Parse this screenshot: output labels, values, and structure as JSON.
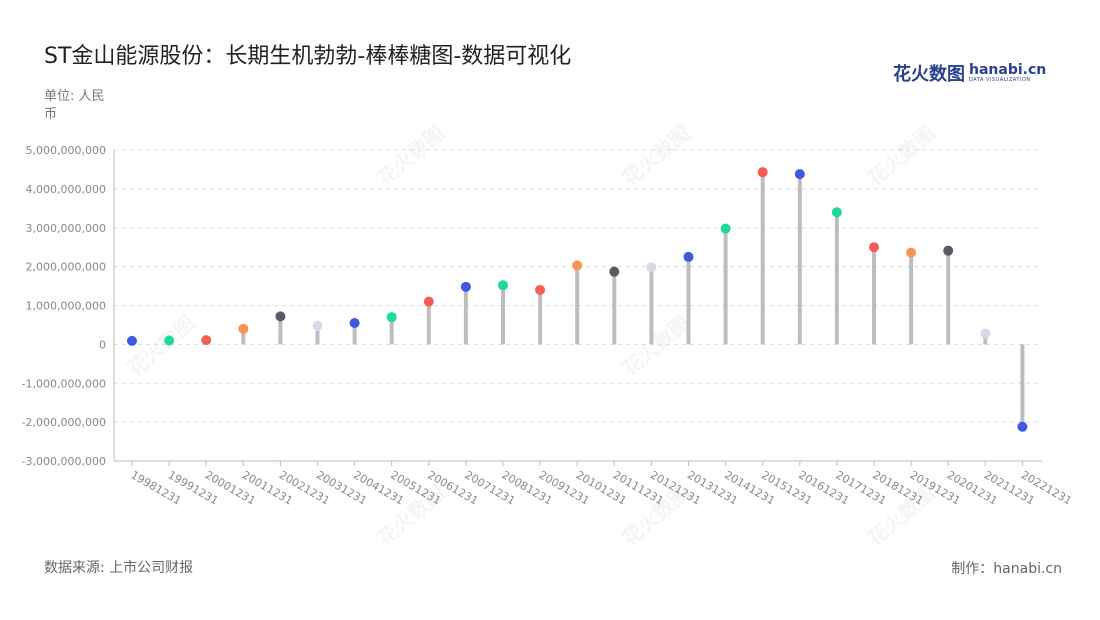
{
  "title": "ST金山能源股份：长期生机勃勃-棒棒糖图-数据可视化",
  "logo": {
    "cn": "花火数图",
    "en": "hanabi.cn",
    "en_sub": "DATA VISUALIZATION"
  },
  "unit_label": "单位: 人民币",
  "source": "数据来源: 上市公司财报",
  "credit": "制作：hanabi.cn",
  "colors": {
    "stem": "#bdbdbd",
    "grid": "#dcdcdc",
    "axis": "#bdbdbd",
    "palette": [
      "#4059e3",
      "#1fd8a0",
      "#f35d54",
      "#f69454",
      "#5a5a66",
      "#d5dae4"
    ]
  },
  "chart_data": {
    "type": "lollipop",
    "ylim": [
      -3000000000,
      5000000000
    ],
    "yticks": [
      5000000000,
      4000000000,
      3000000000,
      2000000000,
      1000000000,
      0,
      -1000000000,
      -2000000000,
      -3000000000
    ],
    "ytick_labels": [
      "5,000,000,000",
      "4,000,000,000",
      "3,000,000,000",
      "2,000,000,000",
      "1,000,000,000",
      "0",
      "-1,000,000,000",
      "-2,000,000,000",
      "-3,000,000,000"
    ],
    "grid": true,
    "categories": [
      "19981231",
      "19991231",
      "20001231",
      "20011231",
      "20021231",
      "20031231",
      "20041231",
      "20051231",
      "20061231",
      "20071231",
      "20081231",
      "20091231",
      "20101231",
      "20111231",
      "20121231",
      "20131231",
      "20141231",
      "20151231",
      "20161231",
      "20171231",
      "20181231",
      "20191231",
      "20201231",
      "20211231",
      "20221231"
    ],
    "values": [
      90000000,
      100000000,
      110000000,
      400000000,
      720000000,
      480000000,
      550000000,
      700000000,
      1100000000,
      1480000000,
      1520000000,
      1400000000,
      2030000000,
      1870000000,
      1980000000,
      2250000000,
      2980000000,
      4430000000,
      4380000000,
      3400000000,
      2500000000,
      2360000000,
      2410000000,
      280000000,
      -2120000000
    ],
    "color_index": [
      0,
      1,
      2,
      3,
      4,
      5,
      0,
      1,
      2,
      0,
      1,
      2,
      3,
      4,
      5,
      0,
      1,
      2,
      0,
      1,
      2,
      3,
      4,
      5,
      0
    ]
  }
}
